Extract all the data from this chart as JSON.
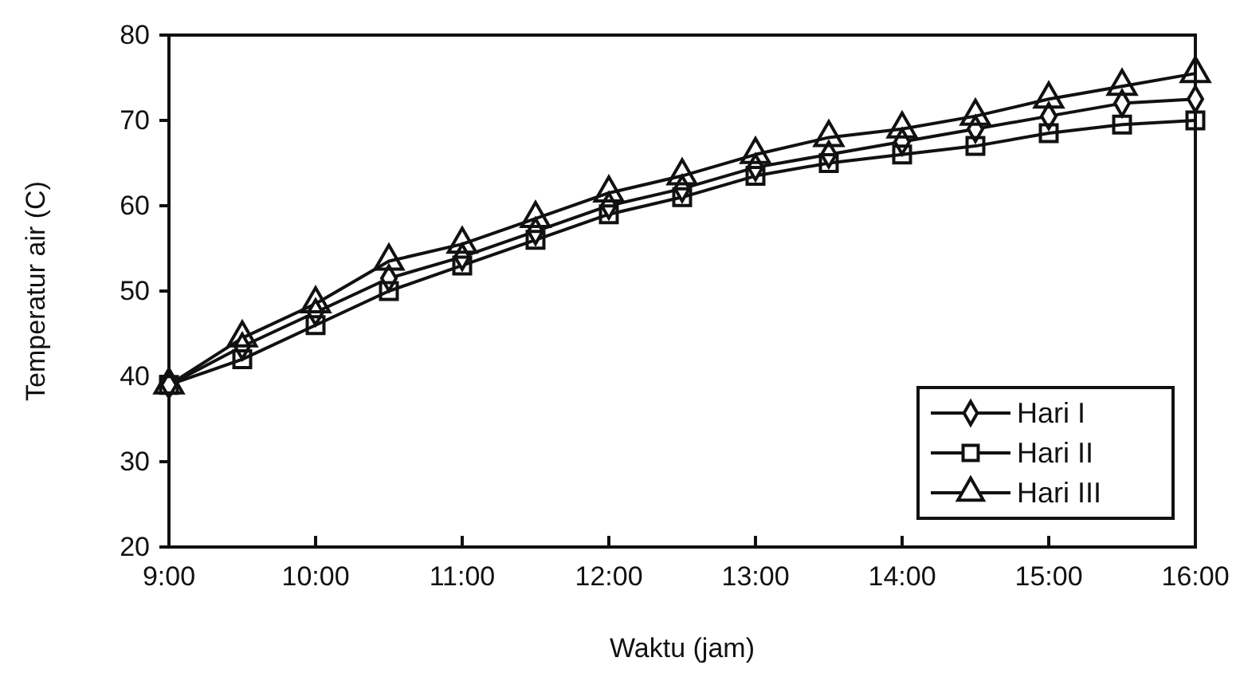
{
  "chart_data": {
    "type": "line",
    "xlabel": "Waktu (jam)",
    "ylabel": "Temperatur air (C)",
    "x": [
      9,
      9.5,
      10,
      10.5,
      11,
      11.5,
      12,
      12.5,
      13,
      13.5,
      14,
      14.5,
      15,
      15.5,
      16
    ],
    "series": [
      {
        "name": "Hari I",
        "color": "#111111",
        "marker": "diamond",
        "values": [
          39,
          43.5,
          47.5,
          51.5,
          54,
          57,
          60,
          62,
          64.5,
          66,
          67.5,
          69,
          70.5,
          72,
          72.5
        ]
      },
      {
        "name": "Hari II",
        "color": "#111111",
        "marker": "square",
        "values": [
          39,
          42,
          46,
          50,
          53,
          56,
          59,
          61,
          63.5,
          65,
          66,
          67,
          68.5,
          69.5,
          70
        ]
      },
      {
        "name": "Hari III",
        "color": "#111111",
        "marker": "triangle",
        "values": [
          39,
          44.5,
          48.5,
          53.5,
          55.5,
          58.5,
          61.5,
          63.5,
          66,
          68,
          69,
          70.5,
          72.5,
          74,
          75.5
        ]
      }
    ],
    "xlim": [
      9,
      16
    ],
    "xticks": [
      {
        "value": 9,
        "label": "9:00"
      },
      {
        "value": 10,
        "label": "10:00"
      },
      {
        "value": 11,
        "label": "11:00"
      },
      {
        "value": 12,
        "label": "12:00"
      },
      {
        "value": 13,
        "label": "13:00"
      },
      {
        "value": 14,
        "label": "14:00"
      },
      {
        "value": 15,
        "label": "15:00"
      },
      {
        "value": 16,
        "label": "16:00"
      }
    ],
    "ylim": [
      20,
      80
    ],
    "yticks": [
      20,
      30,
      40,
      50,
      60,
      70,
      80
    ],
    "legend": "bottom right",
    "line_style": "solid"
  }
}
